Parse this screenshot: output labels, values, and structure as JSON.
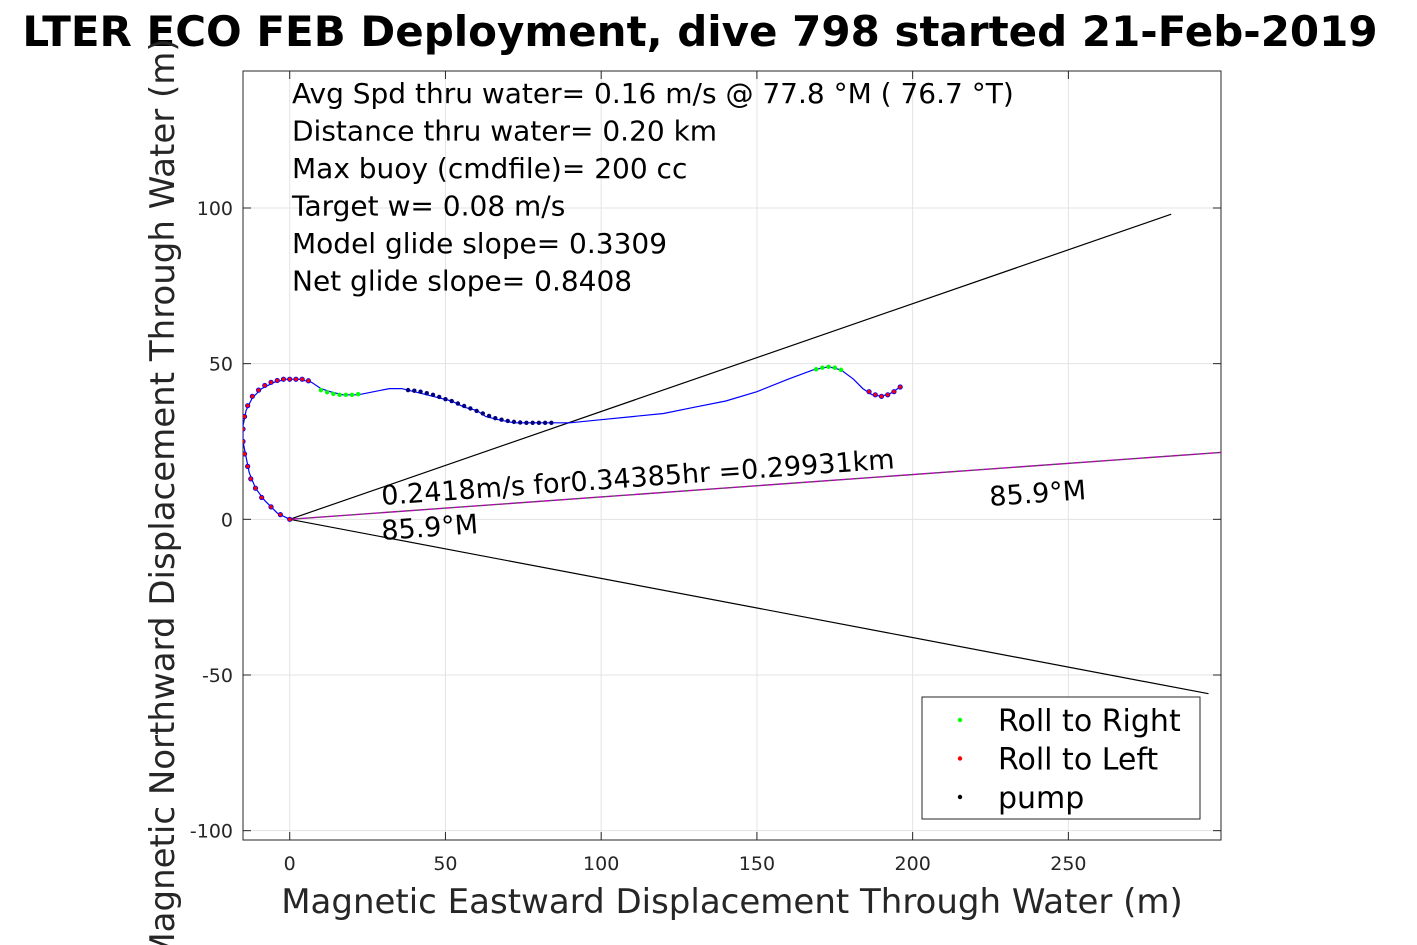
{
  "chart_data": {
    "type": "scatter",
    "title": "LTER ECO FEB Deployment, dive 798 started 21-Feb-2019",
    "xlabel": "Magnetic Eastward Displacement Through Water (m)",
    "ylabel": "Magnetic Northward Displacement Through Water (m)",
    "xlim": [
      -15,
      299
    ],
    "ylim": [
      -103,
      144
    ],
    "xticks": [
      0,
      50,
      100,
      150,
      200,
      250
    ],
    "yticks": [
      -100,
      -50,
      0,
      50,
      100
    ],
    "grid": true,
    "stats": [
      "Avg Spd thru water=  0.16 m/s @  77.8 °M ( 76.7 °T)",
      "Distance thru water=  0.20 km",
      "Max buoy (cmdfile)= 200 cc",
      "Target w= 0.08 m/s",
      "Model glide slope= 0.3309",
      "Net glide slope= 0.8408"
    ],
    "annotations": {
      "current_text": "0.2418m/s for0.34385hr =0.29931km",
      "heading_near": "85.9°M",
      "heading_far": "85.9°M"
    },
    "legend": {
      "placement": "bottom-right",
      "entries": [
        {
          "label": "Roll to Right",
          "color": "#00ff00"
        },
        {
          "label": "Roll to Left",
          "color": "#ff0000"
        },
        {
          "label": "pump",
          "color": "#000000"
        }
      ]
    },
    "colors": {
      "track": "#0000ff",
      "current_line": "#b000b0",
      "roll_right": "#00ff00",
      "roll_left": "#ff0000",
      "pump": "#000080",
      "cone": "#000000"
    },
    "track": [
      [
        0,
        0
      ],
      [
        -4,
        2
      ],
      [
        -8,
        6
      ],
      [
        -11,
        10
      ],
      [
        -13,
        15
      ],
      [
        -14,
        20
      ],
      [
        -15,
        25
      ],
      [
        -15,
        30
      ],
      [
        -14,
        35
      ],
      [
        -12,
        39
      ],
      [
        -9,
        42
      ],
      [
        -5,
        44
      ],
      [
        -1,
        45
      ],
      [
        3,
        45
      ],
      [
        7,
        44
      ],
      [
        10,
        42
      ],
      [
        13,
        41
      ],
      [
        17,
        40
      ],
      [
        22,
        40
      ],
      [
        27,
        41
      ],
      [
        32,
        42
      ],
      [
        36,
        42
      ],
      [
        40,
        41
      ],
      [
        44,
        40
      ],
      [
        48,
        39
      ],
      [
        52,
        38
      ],
      [
        56,
        36
      ],
      [
        60,
        35
      ],
      [
        63,
        33
      ],
      [
        67,
        32
      ],
      [
        72,
        31
      ],
      [
        78,
        31
      ],
      [
        84,
        31
      ],
      [
        90,
        31
      ],
      [
        100,
        32
      ],
      [
        110,
        33
      ],
      [
        120,
        34
      ],
      [
        130,
        36
      ],
      [
        140,
        38
      ],
      [
        150,
        41
      ],
      [
        160,
        45
      ],
      [
        168,
        48
      ],
      [
        173,
        49
      ],
      [
        177,
        48
      ],
      [
        181,
        45
      ],
      [
        184,
        42
      ],
      [
        187,
        40
      ],
      [
        190,
        39.5
      ],
      [
        193,
        40.5
      ],
      [
        196,
        42.5
      ]
    ],
    "roll_left_points": [
      [
        0,
        0
      ],
      [
        -3,
        1.5
      ],
      [
        -6,
        4
      ],
      [
        -9,
        7
      ],
      [
        -11,
        10
      ],
      [
        -12.5,
        13
      ],
      [
        -13.5,
        17
      ],
      [
        -14.5,
        21
      ],
      [
        -15,
        25
      ],
      [
        -15,
        29
      ],
      [
        -14.5,
        33
      ],
      [
        -13.5,
        36.5
      ],
      [
        -12,
        39.5
      ],
      [
        -10,
        41.5
      ],
      [
        -8,
        43
      ],
      [
        -6,
        44
      ],
      [
        -4,
        44.6
      ],
      [
        -2,
        45
      ],
      [
        0,
        45
      ],
      [
        2,
        45
      ],
      [
        4,
        45
      ],
      [
        6,
        44.5
      ],
      [
        186,
        41
      ],
      [
        188,
        40
      ],
      [
        190,
        39.5
      ],
      [
        192,
        40
      ],
      [
        194,
        41
      ],
      [
        196,
        42.5
      ]
    ],
    "roll_right_points": [
      [
        10,
        41.5
      ],
      [
        12,
        40.8
      ],
      [
        14,
        40.3
      ],
      [
        16,
        40
      ],
      [
        18,
        40
      ],
      [
        20,
        40
      ],
      [
        22,
        40.2
      ],
      [
        169,
        48.2
      ],
      [
        171,
        48.7
      ],
      [
        173,
        49
      ],
      [
        175,
        48.7
      ],
      [
        177,
        48
      ]
    ],
    "pump_points": [
      [
        38,
        41.5
      ],
      [
        40,
        41.3
      ],
      [
        42,
        41
      ],
      [
        44,
        40.5
      ],
      [
        46,
        40
      ],
      [
        48,
        39.3
      ],
      [
        50,
        38.6
      ],
      [
        52,
        38
      ],
      [
        54,
        37.2
      ],
      [
        56,
        36.4
      ],
      [
        58,
        35.6
      ],
      [
        60,
        34.8
      ],
      [
        62,
        34
      ],
      [
        64,
        33.2
      ],
      [
        66,
        32.5
      ],
      [
        68,
        32
      ],
      [
        70,
        31.6
      ],
      [
        72,
        31.3
      ],
      [
        74,
        31.1
      ],
      [
        76,
        31
      ],
      [
        78,
        31
      ],
      [
        80,
        31
      ],
      [
        82,
        31
      ],
      [
        84,
        31
      ]
    ],
    "current_line": [
      [
        0,
        0
      ],
      [
        299,
        21.5
      ]
    ],
    "cone_upper": [
      [
        0,
        0
      ],
      [
        283,
        98
      ]
    ],
    "cone_lower": [
      [
        0,
        0
      ],
      [
        295,
        -56
      ]
    ]
  }
}
